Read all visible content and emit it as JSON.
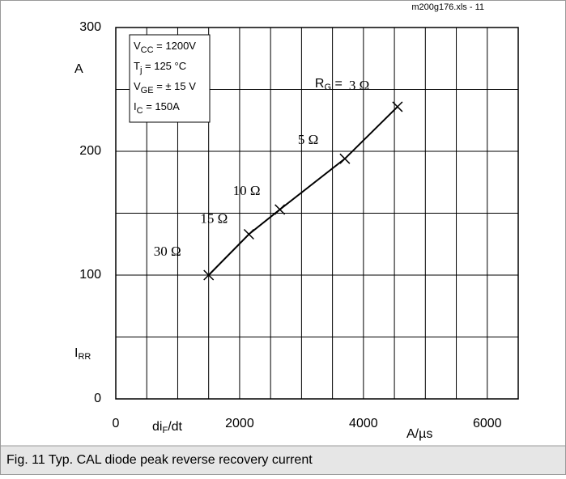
{
  "chart_data": {
    "type": "line",
    "file_note": "m200g176.xls - 11",
    "y_unit": "A",
    "y_label": {
      "main": "I",
      "sub": "RR"
    },
    "x_label": {
      "main": "di",
      "sub": "F",
      "rest": "/dt"
    },
    "x_unit": "A/µs",
    "conditions": [
      {
        "main": "V",
        "sub": "CC",
        "rest": " = 1200V"
      },
      {
        "main": "T",
        "sub": "j",
        "rest": " = 125 °C"
      },
      {
        "main": "V",
        "sub": "GE",
        "rest": " = ± 15 V"
      },
      {
        "main": "I",
        "sub": "C",
        "rest": " =  150A"
      }
    ],
    "rg_prefix": {
      "main": "R",
      "sub": "G",
      "rest": " ="
    },
    "series": [
      {
        "color": "#000000",
        "x": [
          1500,
          2150,
          2650,
          3700,
          4550
        ],
        "values": [
          100,
          133,
          153,
          194,
          236
        ],
        "point_labels": [
          "30 Ω",
          "15 Ω",
          "10 Ω",
          "5 Ω",
          "3 Ω"
        ]
      }
    ],
    "xlim": [
      0,
      6500
    ],
    "ylim": [
      0,
      300
    ],
    "xticks": [
      0,
      2000,
      4000,
      6000
    ],
    "yticks": [
      0,
      100,
      200,
      300
    ],
    "xgrid": [
      500,
      1000,
      1500,
      2000,
      2500,
      3000,
      3500,
      4000,
      4500,
      5000,
      5500,
      6000
    ],
    "ygrid": [
      50,
      100,
      150,
      200,
      250
    ],
    "caption": "Fig. 11 Typ. CAL diode peak reverse recovery current"
  }
}
